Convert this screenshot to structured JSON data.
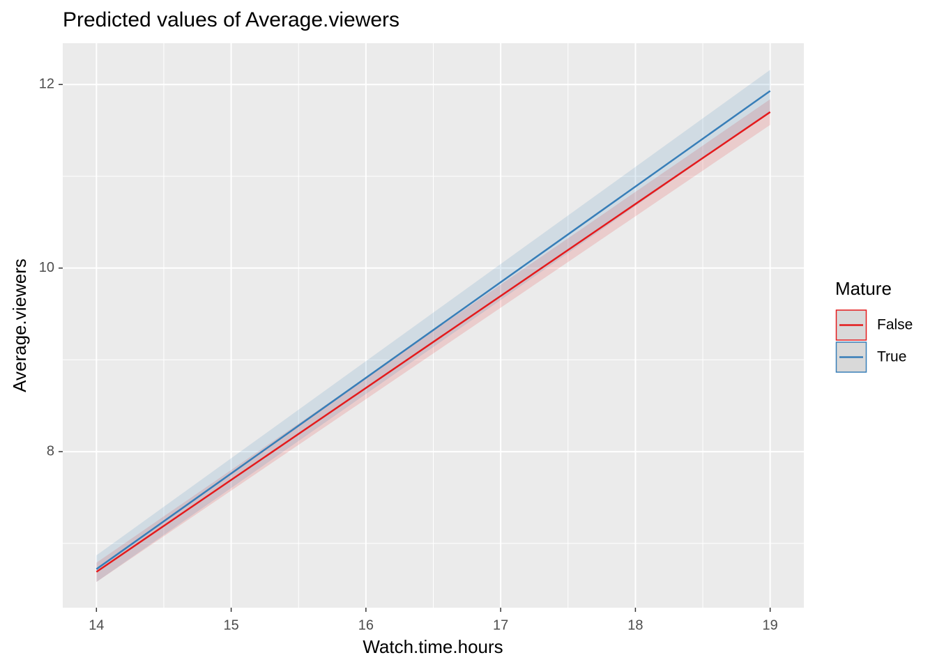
{
  "chart_data": {
    "type": "line",
    "title": "Predicted values of Average.viewers",
    "x_label": "Watch.time.hours",
    "y_label": "Average.viewers",
    "legend_title": "Mature",
    "legend_position": "right",
    "x": [
      14,
      19
    ],
    "series": [
      {
        "name": "False",
        "color": "#e41a1c",
        "values": [
          6.69,
          11.7
        ],
        "lower": [
          6.58,
          11.56
        ],
        "upper": [
          6.79,
          11.84
        ]
      },
      {
        "name": "True",
        "color": "#377eb8",
        "values": [
          6.72,
          11.93
        ],
        "lower": [
          6.58,
          11.7
        ],
        "upper": [
          6.87,
          12.16
        ]
      }
    ],
    "xlim": [
      13.75,
      19.25
    ],
    "ylim": [
      6.3,
      12.45
    ],
    "xticks": [
      14,
      15,
      16,
      17,
      18,
      19
    ],
    "yticks": [
      8,
      10,
      12
    ],
    "grid": true,
    "minor_grid": true
  }
}
